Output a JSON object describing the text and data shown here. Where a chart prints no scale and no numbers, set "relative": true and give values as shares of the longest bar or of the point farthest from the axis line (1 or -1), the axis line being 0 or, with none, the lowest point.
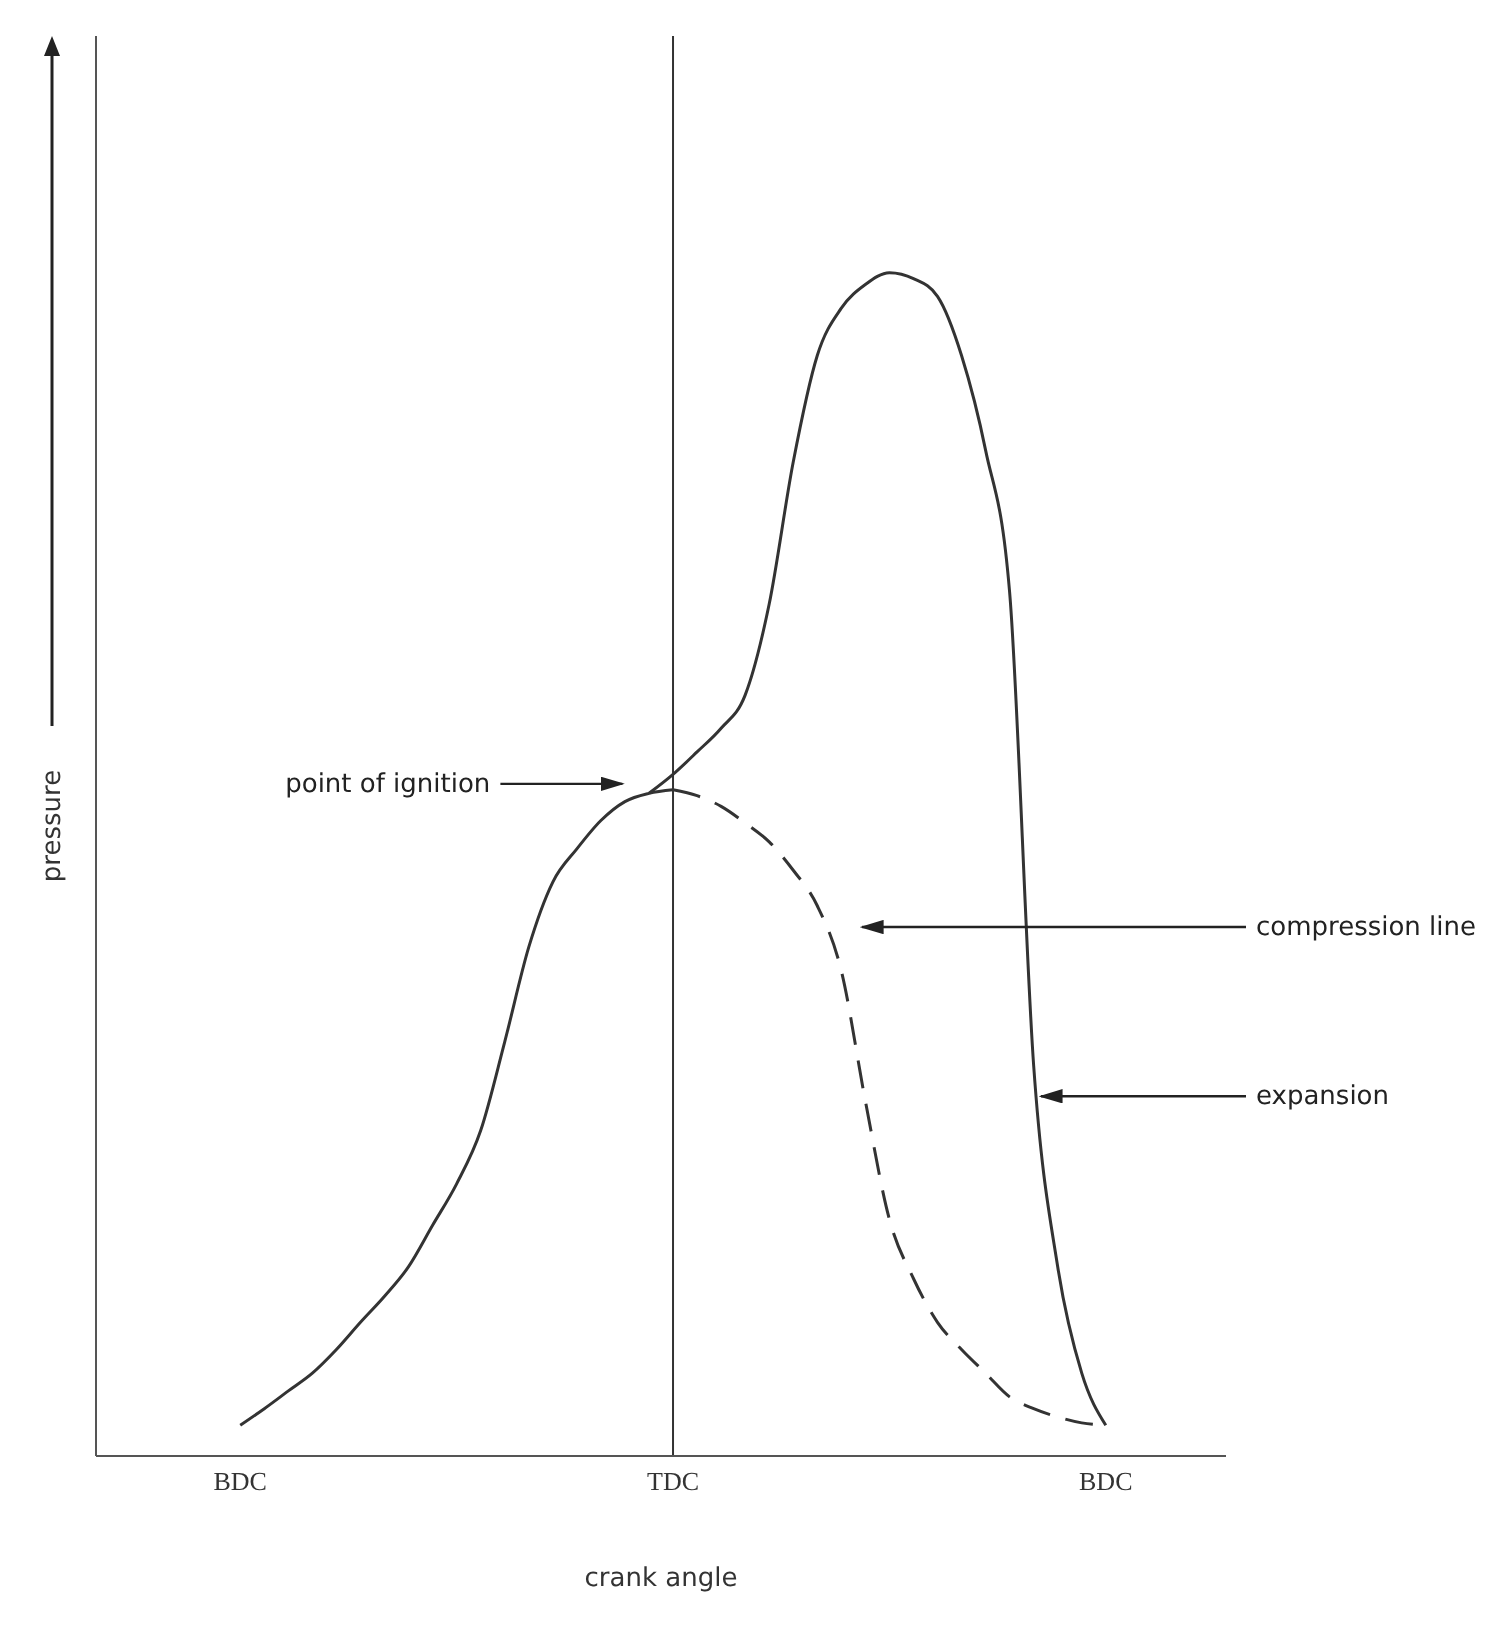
{
  "chart_data": {
    "type": "line",
    "relative": true,
    "xlabel": "crank angle",
    "ylabel": "pressure",
    "categories": [
      null,
      null,
      null,
      null,
      null,
      null,
      "BDC",
      null,
      null,
      null,
      null,
      null,
      null,
      null,
      null,
      null,
      null,
      null,
      null,
      null,
      null,
      null,
      null,
      null,
      "TDC",
      null,
      null,
      null,
      null,
      null,
      null,
      null,
      null,
      null,
      null,
      null,
      null,
      null,
      null,
      null,
      null,
      null,
      "BDC",
      null,
      null,
      null,
      null,
      null
    ],
    "grid": false,
    "legend": false,
    "marker": "none",
    "ref_lines": [
      {
        "axis": "x",
        "value": "TDC",
        "color": "#333333"
      }
    ],
    "series": [
      {
        "color": "#333333",
        "line_style": "solid",
        "values": [
          null,
          null,
          null,
          null,
          null,
          null,
          0.026,
          0.04,
          0.055,
          0.07,
          0.09,
          0.113,
          0.135,
          0.16,
          0.195,
          0.23,
          0.275,
          0.35,
          0.43,
          0.485,
          0.513,
          0.537,
          0.553,
          0.56,
          0.563,
          null,
          null,
          null,
          null,
          null,
          null,
          null,
          null,
          null,
          null,
          null,
          null,
          null,
          null,
          null,
          null,
          null,
          null,
          null,
          null,
          null,
          null,
          null
        ]
      },
      {
        "color": "#333333",
        "line_style": "dashed",
        "values": [
          null,
          null,
          null,
          null,
          null,
          null,
          null,
          null,
          null,
          null,
          null,
          null,
          null,
          null,
          null,
          null,
          null,
          null,
          null,
          null,
          null,
          null,
          null,
          null,
          0.563,
          0.558,
          0.549,
          0.535,
          0.519,
          0.495,
          0.465,
          0.41,
          0.3,
          0.2,
          0.15,
          0.113,
          0.09,
          0.07,
          0.05,
          0.04,
          0.033,
          0.028,
          0.026,
          null,
          null,
          null,
          null,
          null
        ]
      },
      {
        "color": "#333333",
        "line_style": "solid",
        "values": [
          null,
          null,
          null,
          null,
          null,
          null,
          null,
          null,
          null,
          null,
          null,
          null,
          null,
          null,
          null,
          null,
          null,
          null,
          null,
          null,
          null,
          null,
          null,
          0.56,
          0.576,
          0.595,
          0.615,
          0.643,
          0.72,
          0.84,
          0.93,
          0.97,
          0.99,
          1,
          0.995,
          0.98,
          0.93,
          0.85,
          0.73,
          0.33,
          0.16,
          0.07,
          0.026,
          null,
          null,
          null,
          null,
          null
        ]
      }
    ],
    "annotations": [
      "point of ignition",
      "expansion",
      "compression line"
    ]
  }
}
